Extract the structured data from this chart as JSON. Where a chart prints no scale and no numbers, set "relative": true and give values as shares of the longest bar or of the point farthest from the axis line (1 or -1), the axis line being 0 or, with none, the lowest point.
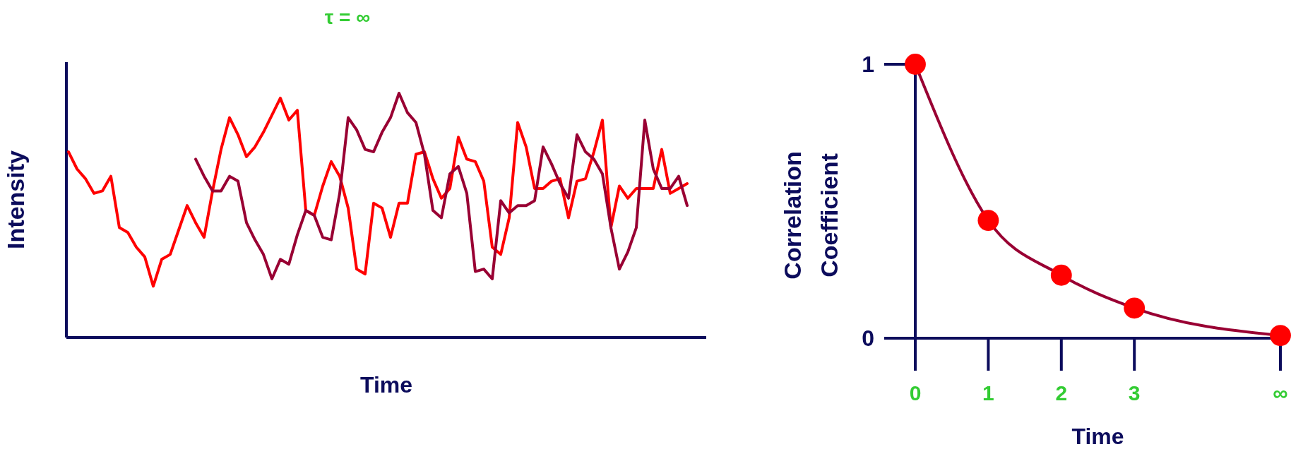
{
  "chart_data": [
    {
      "type": "line",
      "title": "τ = ∞",
      "xlabel": "Time",
      "ylabel": "Intensity",
      "relative": true,
      "categories": [
        null,
        null,
        null,
        null,
        null,
        null,
        null,
        null,
        null,
        null,
        null,
        null,
        null,
        null,
        null,
        null,
        null,
        null,
        null,
        null,
        null,
        null,
        null,
        null,
        null,
        null,
        null,
        null,
        null,
        null,
        null,
        null,
        null,
        null,
        null,
        null,
        null,
        null,
        null,
        null,
        null,
        null,
        null,
        null,
        null,
        null,
        null,
        null,
        null,
        null,
        null,
        null,
        null,
        null,
        null,
        null,
        null,
        null,
        null,
        null,
        null,
        null,
        null,
        null,
        null,
        null,
        null,
        null,
        null,
        null,
        null,
        null,
        null,
        null
      ],
      "series": [
        {
          "color": "#ff0000",
          "values": [
            0.76,
            0.69,
            0.65,
            0.59,
            0.6,
            0.66,
            0.45,
            0.43,
            0.37,
            0.33,
            0.21,
            0.32,
            0.34,
            0.44,
            0.54,
            0.47,
            0.41,
            0.6,
            0.77,
            0.9,
            0.83,
            0.74,
            0.78,
            0.84,
            0.91,
            0.98,
            0.89,
            0.93,
            0.52,
            0.5,
            0.62,
            0.72,
            0.66,
            0.53,
            0.28,
            0.26,
            0.55,
            0.53,
            0.41,
            0.55,
            0.55,
            0.75,
            0.76,
            0.65,
            0.57,
            0.61,
            0.82,
            0.73,
            0.72,
            0.64,
            0.37,
            0.34,
            0.49,
            0.88,
            0.78,
            0.61,
            0.61,
            0.64,
            0.65,
            0.49,
            0.64,
            0.65,
            0.76,
            0.89,
            0.45,
            0.62,
            0.57,
            0.61,
            0.61,
            0.61,
            0.77,
            0.59,
            0.61,
            0.63
          ]
        },
        {
          "color": "#990033",
          "values": [
            null,
            null,
            null,
            null,
            null,
            null,
            null,
            null,
            null,
            null,
            null,
            null,
            null,
            null,
            null,
            0.73,
            0.66,
            0.6,
            0.6,
            0.66,
            0.64,
            0.47,
            0.4,
            0.34,
            0.24,
            0.32,
            0.3,
            0.42,
            0.52,
            0.5,
            0.41,
            0.4,
            0.59,
            0.9,
            0.85,
            0.77,
            0.76,
            0.84,
            0.9,
            1,
            0.92,
            0.88,
            0.75,
            0.52,
            0.49,
            0.67,
            0.7,
            0.59,
            0.27,
            0.28,
            0.24,
            0.56,
            0.51,
            0.54,
            0.54,
            0.56,
            0.78,
            0.71,
            0.63,
            0.57,
            0.83,
            0.76,
            0.73,
            0.67,
            0.45,
            0.28,
            0.35,
            0.45,
            0.89,
            0.69,
            0.61,
            0.61,
            0.66,
            0.54
          ]
        }
      ]
    },
    {
      "type": "line",
      "xlabel": "Time",
      "ylabel": "Correlation Coefficient",
      "x": [
        0,
        1,
        2,
        3,
        5
      ],
      "xlim": [
        0,
        5
      ],
      "ylim": [
        0,
        1
      ],
      "xticks": [
        0,
        1,
        2,
        3,
        {
          "value": 5,
          "label": "∞"
        }
      ],
      "yticks": [
        0,
        1
      ],
      "series": [
        {
          "color": "#990033",
          "marker": "none",
          "values": [
            1,
            0.43,
            0.23,
            0.11,
            0.01
          ]
        },
        {
          "type": "scatter",
          "marker": "circle",
          "color": "#ff0000",
          "values": [
            1,
            0.43,
            0.23,
            0.11,
            0.01
          ]
        }
      ]
    }
  ]
}
